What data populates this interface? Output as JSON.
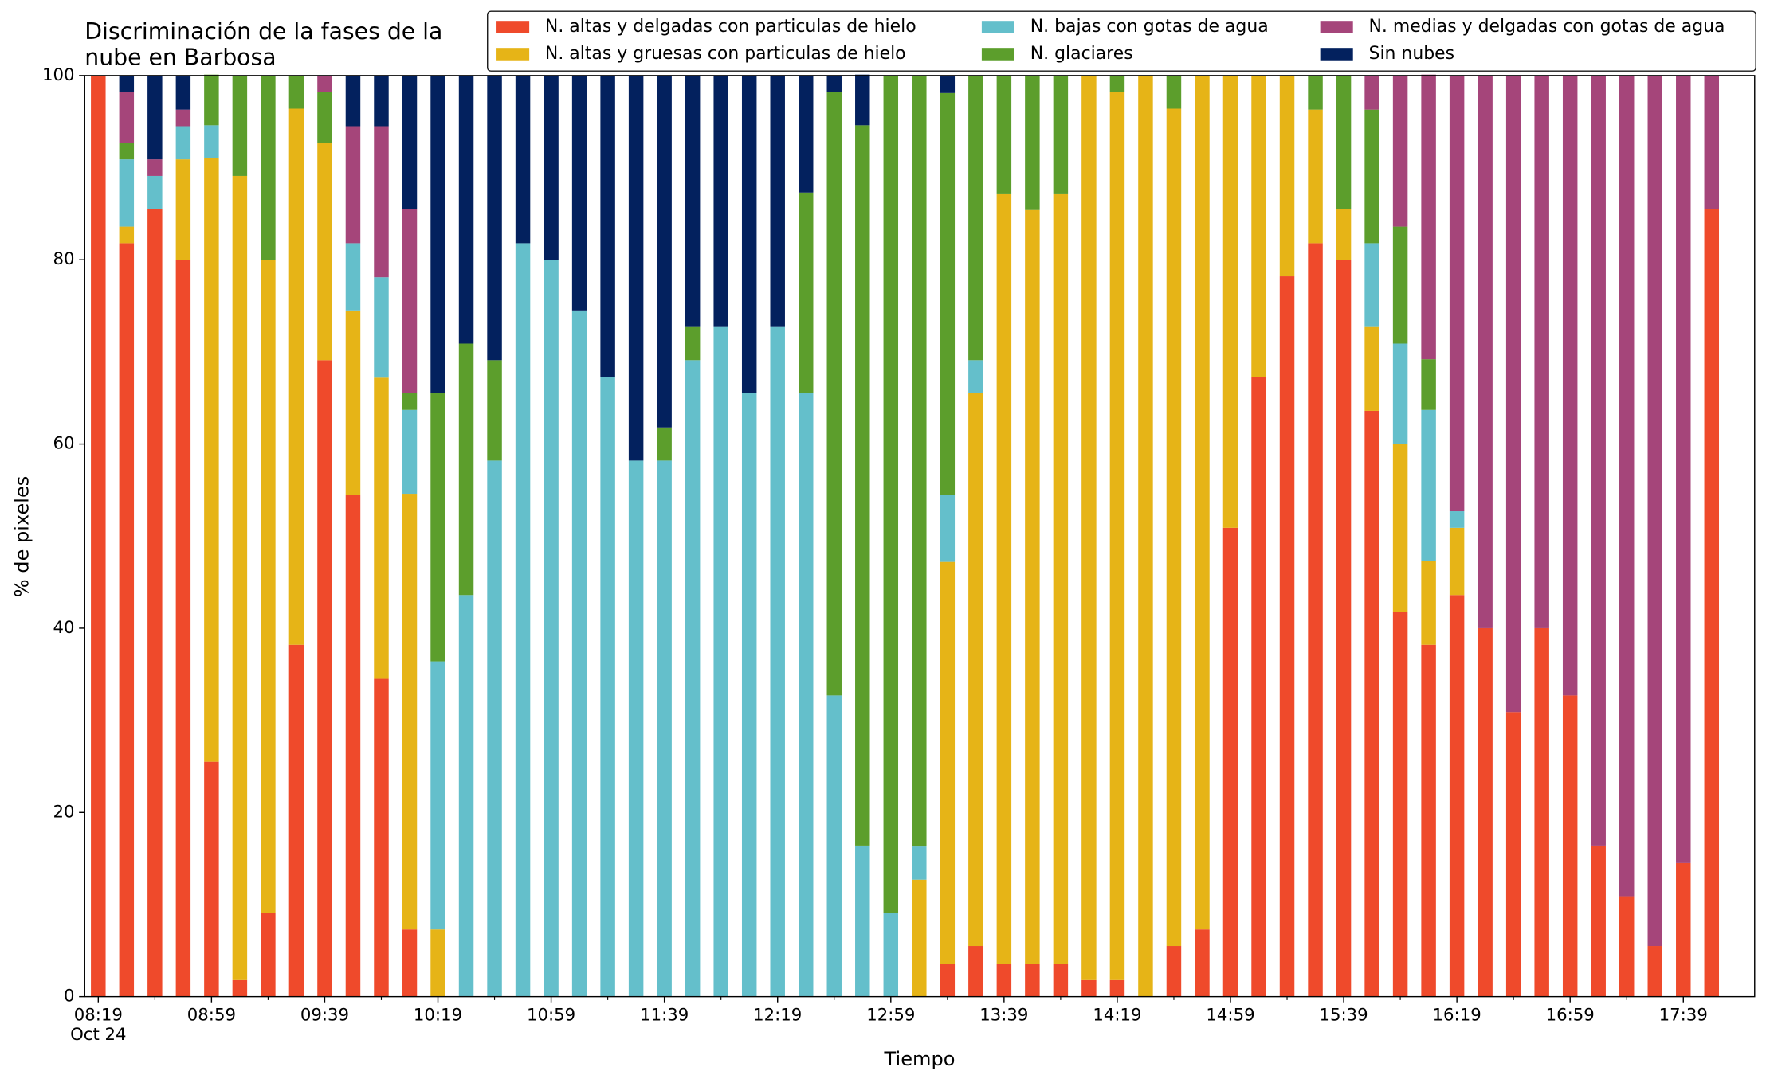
{
  "chart_data": {
    "type": "stacked-bar",
    "title": [
      "Discriminación de la fases de la",
      "nube en Barbosa"
    ],
    "xlabel": "Tiempo",
    "ylabel": "% de pixeles",
    "x_date_label": "Oct 24",
    "categories": [
      "08:19",
      null,
      null,
      null,
      "08:59",
      null,
      null,
      null,
      "09:39",
      null,
      null,
      null,
      "10:19",
      null,
      null,
      null,
      "10:59",
      null,
      null,
      null,
      "11:39",
      null,
      null,
      null,
      "12:19",
      null,
      null,
      null,
      "12:59",
      null,
      null,
      null,
      "13:39",
      null,
      null,
      null,
      "14:19",
      null,
      null,
      null,
      "14:59",
      null,
      null,
      null,
      "15:39",
      null,
      null,
      null,
      "16:19",
      null,
      null,
      null,
      "16:59",
      null,
      null,
      null,
      "17:39",
      null
    ],
    "ylim": [
      0,
      100
    ],
    "yticks": [
      0,
      20,
      40,
      60,
      80,
      100
    ],
    "grid": false,
    "legend": "top",
    "series": [
      {
        "name": "N. altas y delgadas con particulas de hielo",
        "color": "#ef4a2b",
        "values": [
          100,
          81.8,
          85.5,
          80,
          25.5,
          1.8,
          9.1,
          38.2,
          69.1,
          54.5,
          34.5,
          7.3,
          0,
          0,
          0,
          0,
          0,
          0,
          0,
          0,
          0,
          0,
          0,
          0,
          0,
          0,
          0,
          0,
          0,
          0,
          3.6,
          5.5,
          3.6,
          3.6,
          3.6,
          1.8,
          1.8,
          0,
          5.5,
          7.3,
          50.9,
          67.3,
          78.2,
          81.8,
          80,
          63.6,
          41.8,
          38.2,
          43.6,
          40,
          30.9,
          40,
          32.7,
          16.4,
          10.9,
          5.5,
          14.5,
          85.5
        ]
      },
      {
        "name": "N. altas y gruesas con particulas de hielo",
        "color": "#e6b417",
        "values": [
          0,
          1.8,
          0,
          10.9,
          65.5,
          87.3,
          70.9,
          58.2,
          23.6,
          20,
          32.7,
          47.3,
          7.3,
          0,
          0,
          0,
          0,
          0,
          0,
          0,
          0,
          0,
          0,
          0,
          0,
          0,
          0,
          0,
          0,
          12.7,
          43.6,
          60,
          83.6,
          81.8,
          83.6,
          98.2,
          96.4,
          100,
          90.9,
          92.7,
          49.1,
          32.7,
          21.8,
          14.5,
          5.5,
          9.1,
          18.2,
          9.1,
          7.3,
          0,
          0,
          0,
          0,
          0,
          0,
          0,
          0,
          0
        ]
      },
      {
        "name": "N. bajas con gotas de agua",
        "color": "#64bfcb",
        "values": [
          0,
          7.3,
          3.6,
          3.6,
          3.6,
          0,
          0,
          0,
          0,
          7.3,
          10.9,
          9.1,
          29.1,
          43.6,
          58.2,
          81.8,
          80,
          74.5,
          67.3,
          58.2,
          58.2,
          69.1,
          72.7,
          65.5,
          72.7,
          65.5,
          32.7,
          16.4,
          9.1,
          3.6,
          7.3,
          3.6,
          0,
          0,
          0,
          0,
          0,
          0,
          0,
          0,
          0,
          0,
          0,
          0,
          0,
          9.1,
          10.9,
          16.4,
          1.8,
          0,
          0,
          0,
          0,
          0,
          0,
          0,
          0,
          0
        ]
      },
      {
        "name": "N. glaciares",
        "color": "#5c9e2c",
        "values": [
          0,
          1.8,
          0,
          0,
          5.5,
          10.9,
          20,
          3.6,
          5.5,
          0,
          0,
          1.8,
          29.1,
          27.3,
          10.9,
          0,
          0,
          0,
          0,
          0,
          3.6,
          3.6,
          0,
          0,
          0,
          21.8,
          65.5,
          78.2,
          90.9,
          83.6,
          43.6,
          30.9,
          12.7,
          14.5,
          12.7,
          0,
          1.8,
          0,
          3.6,
          0,
          0,
          0,
          0,
          3.6,
          14.5,
          14.5,
          12.7,
          5.5,
          0,
          0,
          0,
          0,
          0,
          0,
          0,
          0,
          0,
          0
        ]
      },
      {
        "name": "N. medias y delgadas con gotas de agua",
        "color": "#a5457a",
        "values": [
          0,
          5.5,
          1.8,
          1.8,
          0,
          0,
          0,
          0,
          1.8,
          12.7,
          16.4,
          20,
          0,
          0,
          0,
          0,
          0,
          0,
          0,
          0,
          0,
          0,
          0,
          0,
          0,
          0,
          0,
          0,
          0,
          0,
          0,
          0,
          0,
          0,
          0,
          0,
          0,
          0,
          0,
          0,
          0,
          0,
          0,
          0,
          0,
          3.6,
          16.4,
          30.9,
          47.3,
          60,
          69.1,
          60,
          67.3,
          83.6,
          89.1,
          94.5,
          85.5,
          14.5
        ]
      },
      {
        "name": "Sin nubes",
        "color": "#03215e",
        "values": [
          0,
          1.8,
          9.1,
          3.6,
          0,
          0,
          0,
          0,
          0,
          5.5,
          5.5,
          14.5,
          34.5,
          29.1,
          30.9,
          18.2,
          20,
          25.5,
          32.7,
          41.8,
          38.2,
          27.3,
          27.3,
          34.5,
          27.3,
          12.7,
          1.8,
          5.5,
          0,
          0,
          1.8,
          0,
          0,
          0,
          0,
          0,
          0,
          0,
          0,
          0,
          0,
          0,
          0,
          0,
          0,
          0,
          0,
          0,
          0,
          0,
          0,
          0,
          0,
          0,
          0,
          0,
          0,
          0
        ]
      }
    ]
  }
}
